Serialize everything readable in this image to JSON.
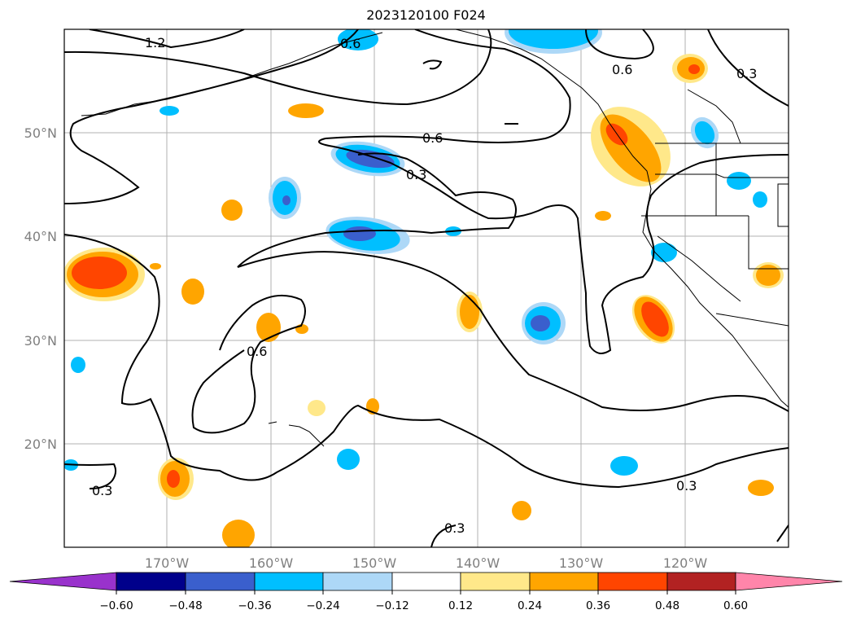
{
  "title": "2023120100 F024",
  "map": {
    "lon_range": [
      -180,
      -110
    ],
    "lat_range": [
      10,
      60
    ],
    "lon_tick_labels": [
      "170°W",
      "160°W",
      "150°W",
      "140°W",
      "130°W",
      "120°W"
    ],
    "lat_tick_labels": [
      "20°N",
      "30°N",
      "40°N",
      "50°N"
    ],
    "gridlines": true,
    "contour_labels": [
      "1.2",
      "0.6",
      "0.6",
      "0.6",
      "0.3",
      "0.3",
      "0.6",
      "0.3",
      "0.3",
      "0.3"
    ]
  },
  "colorbar": {
    "orientation": "horizontal",
    "extend": "both",
    "tick_labels": [
      "−0.60",
      "−0.48",
      "−0.36",
      "−0.24",
      "−0.12",
      "0.12",
      "0.24",
      "0.36",
      "0.48",
      "0.60"
    ],
    "colors": [
      "#9932cc",
      "#00008b",
      "#3a5fcd",
      "#00bfff",
      "#add8f7",
      "#ffffff",
      "#ffe88a",
      "#ffa500",
      "#ff4500",
      "#b22222",
      "#ff85aa"
    ]
  }
}
